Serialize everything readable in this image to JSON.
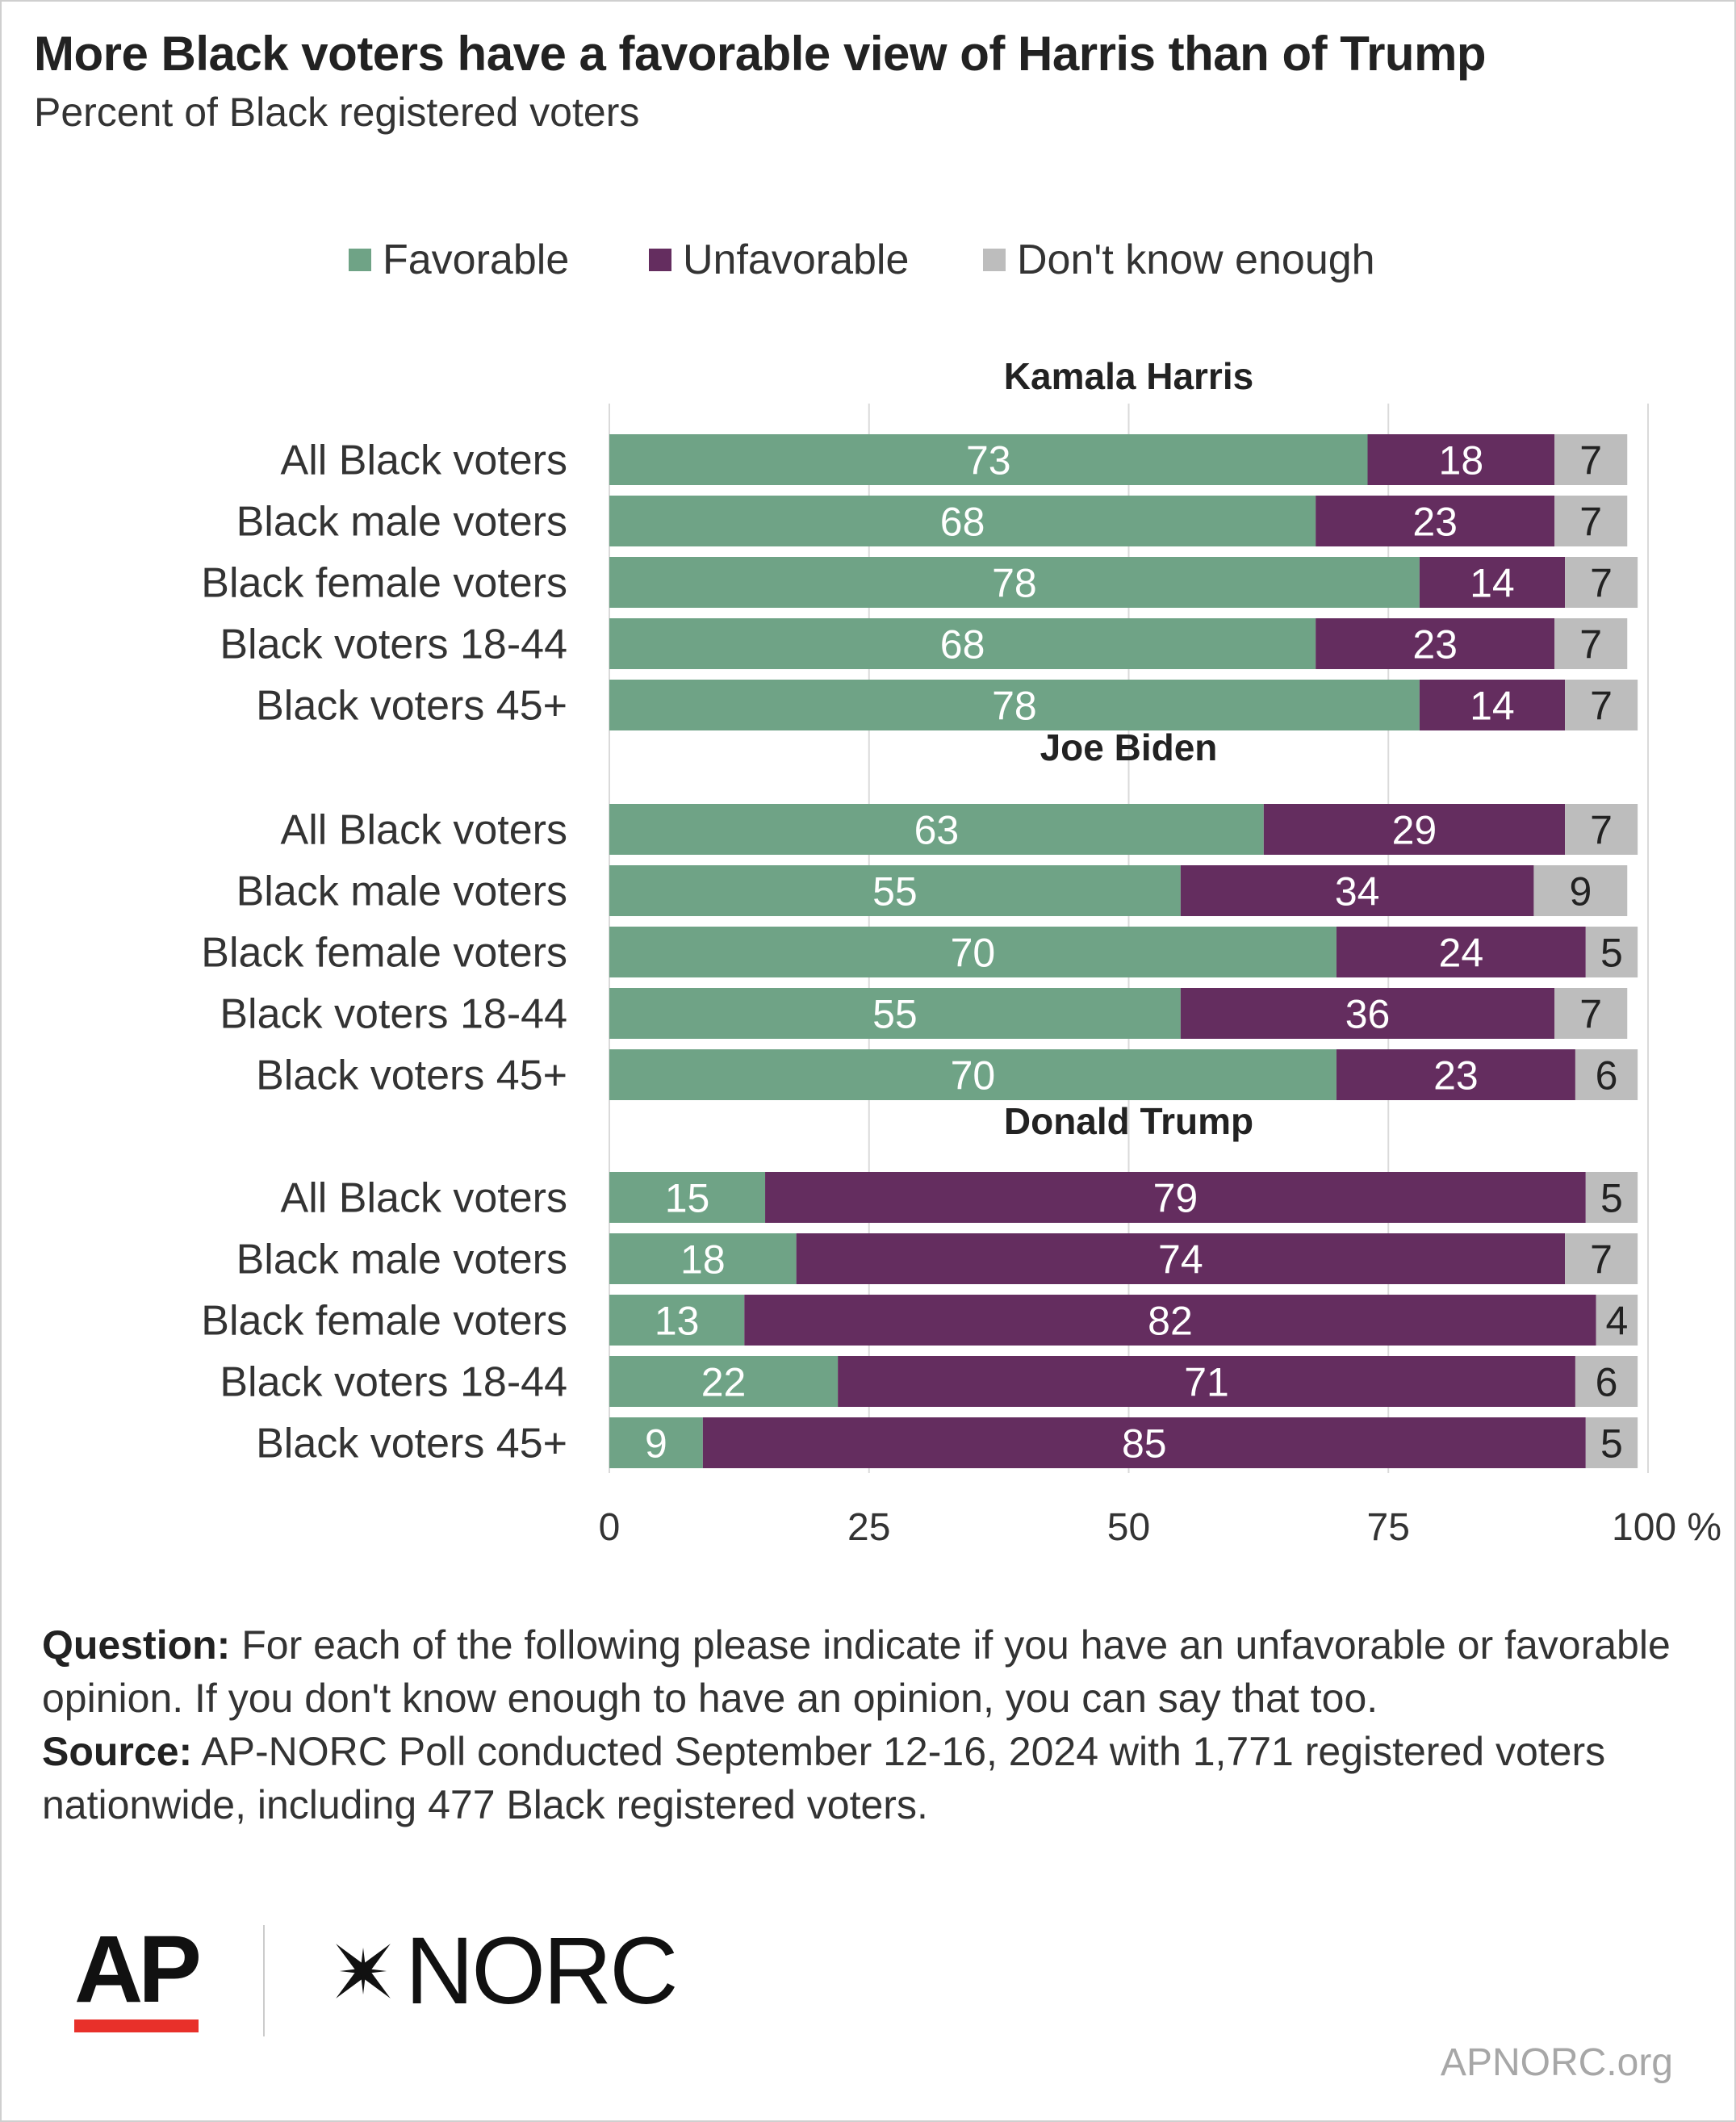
{
  "title": "More Black voters have a favorable view of Harris than of Trump",
  "subtitle": "Percent of Black registered voters",
  "legend": [
    {
      "label": "Favorable",
      "color": "#6fa386"
    },
    {
      "label": "Unfavorable",
      "color": "#642d5f"
    },
    {
      "label": "Don't know enough",
      "color": "#bdbdbd"
    }
  ],
  "notes": {
    "question_label": "Question:",
    "question_text": " For each of the following please indicate if you have an unfavorable or favorable opinion. If you don't know enough to have an opinion, you can say that too.",
    "source_label": "Source:",
    "source_text": " AP-NORC Poll conducted September 12-16, 2024 with 1,771 registered voters nationwide, including 477 Black registered voters."
  },
  "footer": {
    "ap_logo": "AP",
    "norc_logo": "NORC",
    "url": "APNORC.org"
  },
  "chart_data": {
    "type": "bar",
    "orientation": "horizontal",
    "stacked": true,
    "xlim": [
      0,
      100
    ],
    "xticks": [
      "0",
      "25",
      "50",
      "75",
      "100 %"
    ],
    "grid": true,
    "legend_position": "top",
    "series_colors": {
      "Favorable": "#6fa386",
      "Unfavorable": "#642d5f",
      "Don't know enough": "#bdbdbd"
    },
    "groups": [
      {
        "title": "Kamala Harris",
        "categories": [
          "All Black voters",
          "Black male voters",
          "Black female voters",
          "Black voters 18-44",
          "Black voters 45+"
        ],
        "series": [
          {
            "name": "Favorable",
            "values": [
              73,
              68,
              78,
              68,
              78
            ]
          },
          {
            "name": "Unfavorable",
            "values": [
              18,
              23,
              14,
              23,
              14
            ]
          },
          {
            "name": "Don't know enough",
            "values": [
              7,
              7,
              7,
              7,
              7
            ]
          }
        ]
      },
      {
        "title": "Joe Biden",
        "categories": [
          "All Black voters",
          "Black male voters",
          "Black female voters",
          "Black voters 18-44",
          "Black voters 45+"
        ],
        "series": [
          {
            "name": "Favorable",
            "values": [
              63,
              55,
              70,
              55,
              70
            ]
          },
          {
            "name": "Unfavorable",
            "values": [
              29,
              34,
              24,
              36,
              23
            ]
          },
          {
            "name": "Don't know enough",
            "values": [
              7,
              9,
              5,
              7,
              6
            ]
          }
        ]
      },
      {
        "title": "Donald Trump",
        "categories": [
          "All Black voters",
          "Black male voters",
          "Black female voters",
          "Black voters 18-44",
          "Black voters 45+"
        ],
        "series": [
          {
            "name": "Favorable",
            "values": [
              15,
              18,
              13,
              22,
              9
            ]
          },
          {
            "name": "Unfavorable",
            "values": [
              79,
              74,
              82,
              71,
              85
            ]
          },
          {
            "name": "Don't know enough",
            "values": [
              5,
              7,
              4,
              6,
              5
            ]
          }
        ]
      }
    ]
  }
}
